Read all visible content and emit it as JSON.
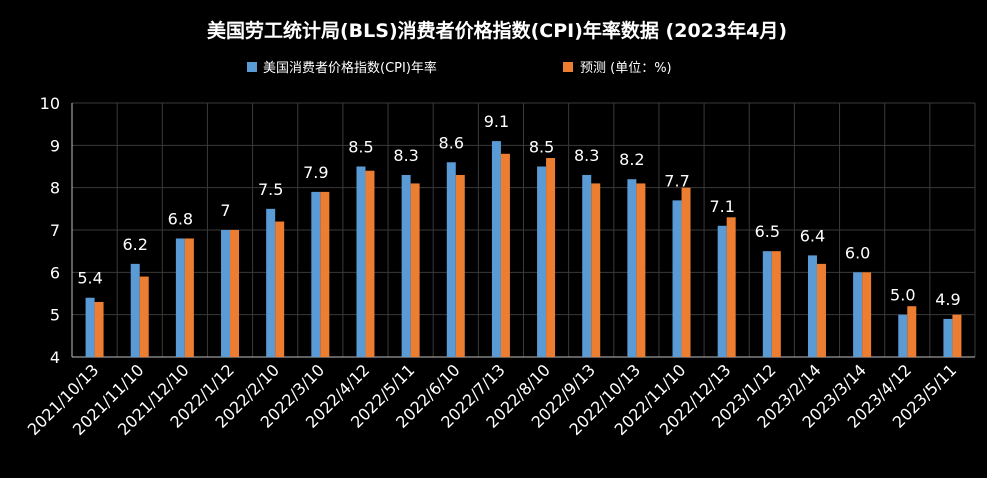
{
  "chart_data": {
    "type": "bar",
    "title": "美国劳工统计局(BLS)消费者价格指数(CPI)年率数据 (2023年4月)",
    "categories": [
      "2021/10/13",
      "2021/11/10",
      "2021/12/10",
      "2022/1/12",
      "2022/2/10",
      "2022/3/10",
      "2022/4/12",
      "2022/5/11",
      "2022/6/10",
      "2022/7/13",
      "2022/8/10",
      "2022/9/13",
      "2022/10/13",
      "2022/11/10",
      "2022/12/13",
      "2023/1/12",
      "2023/2/14",
      "2023/3/14",
      "2023/4/12",
      "2023/5/11"
    ],
    "series": [
      {
        "name": "美国消费者价格指数(CPI)年率",
        "color": "#5b9bd5",
        "values": [
          5.4,
          6.2,
          6.8,
          7.0,
          7.5,
          7.9,
          8.5,
          8.3,
          8.6,
          9.1,
          8.5,
          8.3,
          8.2,
          7.7,
          7.1,
          6.5,
          6.4,
          6.0,
          5.0,
          4.9
        ],
        "labels": [
          "5.4",
          "6.2",
          "6.8",
          "7",
          "7.5",
          "7.9",
          "8.5",
          "8.3",
          "8.6",
          "9.1",
          "8.5",
          "8.3",
          "8.2",
          "7.7",
          "7.1",
          "6.5",
          "6.4",
          "6.0",
          "5.0",
          "4.9"
        ]
      },
      {
        "name": "预测   (单位：%)",
        "color": "#ed7d31",
        "values": [
          5.3,
          5.9,
          6.8,
          7.0,
          7.2,
          7.9,
          8.4,
          8.1,
          8.3,
          8.8,
          8.7,
          8.1,
          8.1,
          8.0,
          7.3,
          6.5,
          6.2,
          6.0,
          5.2,
          5.0
        ]
      }
    ],
    "ylim": [
      4,
      10
    ],
    "yticks": [
      4,
      5,
      6,
      7,
      8,
      9,
      10
    ],
    "grid": true,
    "legend": "top-center"
  }
}
